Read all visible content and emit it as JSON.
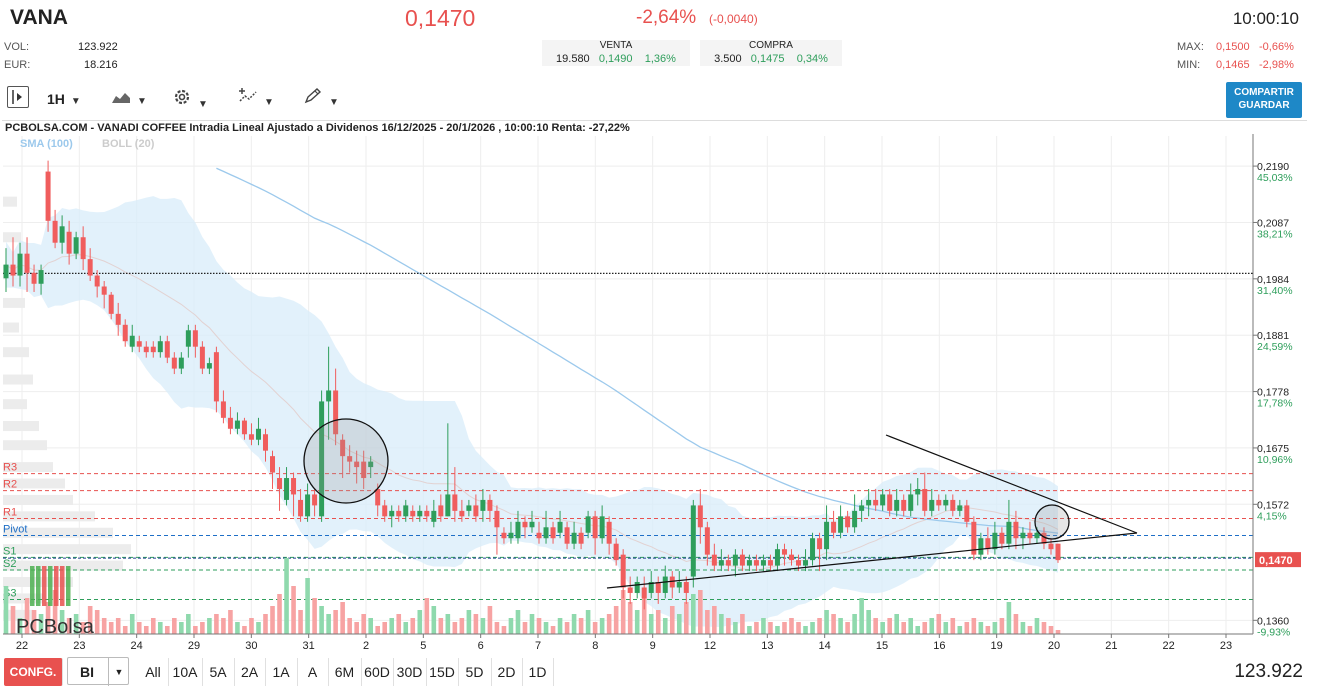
{
  "header": {
    "ticker": "VANA",
    "price": "0,1470",
    "change_pct": "-2,64%",
    "change_abs": "(-0,0040)",
    "time": "10:00:10",
    "vol_label": "VOL:",
    "vol_value": "123.922",
    "eur_label": "EUR:",
    "eur_value": "18.216",
    "max_label": "MAX:",
    "max_price": "0,1500",
    "max_pct": "-0,66%",
    "min_label": "MIN:",
    "min_price": "0,1465",
    "min_pct": "-2,98%"
  },
  "orderbook": {
    "sell_label": "VENTA",
    "sell_qty": "19.580",
    "sell_price": "0,1490",
    "sell_pct": "1,36%",
    "buy_label": "COMPRA",
    "buy_qty": "3.500",
    "buy_price": "0,1475",
    "buy_pct": "0,34%"
  },
  "toolbar": {
    "interval": "1H",
    "share_line1": "COMPARTIR",
    "share_line2": "GUARDAR"
  },
  "bottom": {
    "config": "CONFG.",
    "scale": "BI",
    "ranges": [
      "All",
      "10A",
      "5A",
      "2A",
      "1A",
      "A",
      "6M",
      "60D",
      "30D",
      "15D",
      "5D",
      "2D",
      "1D"
    ],
    "volume": "123.922"
  },
  "colors": {
    "up": "#2e9e5b",
    "down": "#f05d5d",
    "sma": "#9cc9ec",
    "band": "#d8ecfa",
    "accent": "#1e88c7"
  },
  "chart_data": {
    "type": "candlestick",
    "title": "PCBOLSA.COM - VANADI COFFEE Intradia Lineal Ajustado a Dividenos 16/12/2025 - 20/1/2026 , 10:00:10 Renta: -27,22%",
    "legend": [
      "SMA (100)",
      "BOLL (20)"
    ],
    "watermark": "PCBolsa",
    "x_ticks": [
      "22",
      "23",
      "24",
      "29",
      "30",
      "31",
      "2",
      "5",
      "6",
      "7",
      "8",
      "9",
      "12",
      "13",
      "14",
      "15",
      "16",
      "19",
      "20",
      "21",
      "22",
      "23"
    ],
    "y_ticks": [
      {
        "value": 0.219,
        "label": "0,2190",
        "pct": "45,03%"
      },
      {
        "value": 0.2087,
        "label": "0,2087",
        "pct": "38,21%"
      },
      {
        "value": 0.1984,
        "label": "0,1984",
        "pct": "31,40%"
      },
      {
        "value": 0.1881,
        "label": "0,1881",
        "pct": "24,59%"
      },
      {
        "value": 0.1778,
        "label": "0,1778",
        "pct": "17,78%"
      },
      {
        "value": 0.1675,
        "label": "0,1675",
        "pct": "10,96%"
      },
      {
        "value": 0.1572,
        "label": "0,1572",
        "pct": "4,15%"
      },
      {
        "value": 0.136,
        "label": "0,1360",
        "pct": "-9,93%"
      }
    ],
    "last_price": {
      "value": 0.147,
      "label": "0,1470"
    },
    "ylim": [
      0.1335,
      0.2245
    ],
    "levels": [
      {
        "name": "R3",
        "value": 0.1628,
        "color": "#e8514f"
      },
      {
        "name": "R2",
        "value": 0.1597,
        "color": "#e8514f"
      },
      {
        "name": "R1",
        "value": 0.1546,
        "color": "#e8514f"
      },
      {
        "name": "Pivot",
        "value": 0.1515,
        "color": "#1e6fc7"
      },
      {
        "name": "S1",
        "value": 0.1475,
        "color": "#2e9e5b"
      },
      {
        "name": "S2",
        "value": 0.1452,
        "color": "#2e9e5b"
      },
      {
        "name": "S3",
        "value": 0.1398,
        "color": "#2e9e5b"
      }
    ],
    "reference_line": 0.1994,
    "candles": [
      [
        0.1985,
        0.201,
        0.204,
        0.196
      ],
      [
        0.201,
        0.199,
        0.206,
        0.197
      ],
      [
        0.199,
        0.203,
        0.205,
        0.197
      ],
      [
        0.203,
        0.1995,
        0.206,
        0.196
      ],
      [
        0.1995,
        0.1975,
        0.201,
        0.196
      ],
      [
        0.1975,
        0.2,
        0.201,
        0.1955
      ],
      [
        0.218,
        0.209,
        0.22,
        0.207
      ],
      [
        0.209,
        0.205,
        0.211,
        0.204
      ],
      [
        0.205,
        0.208,
        0.21,
        0.203
      ],
      [
        0.207,
        0.203,
        0.209,
        0.201
      ],
      [
        0.203,
        0.206,
        0.207,
        0.202
      ],
      [
        0.206,
        0.202,
        0.208,
        0.2
      ],
      [
        0.202,
        0.199,
        0.204,
        0.198
      ],
      [
        0.199,
        0.197,
        0.2,
        0.195
      ],
      [
        0.197,
        0.1955,
        0.198,
        0.193
      ],
      [
        0.1955,
        0.192,
        0.196,
        0.191
      ],
      [
        0.192,
        0.19,
        0.194,
        0.188
      ],
      [
        0.19,
        0.187,
        0.191,
        0.186
      ],
      [
        0.186,
        0.188,
        0.19,
        0.185
      ],
      [
        0.187,
        0.186,
        0.188,
        0.185
      ],
      [
        0.186,
        0.185,
        0.187,
        0.184
      ],
      [
        0.186,
        0.185,
        0.187,
        0.184
      ],
      [
        0.185,
        0.187,
        0.188,
        0.184
      ],
      [
        0.187,
        0.184,
        0.188,
        0.183
      ],
      [
        0.184,
        0.182,
        0.185,
        0.181
      ],
      [
        0.182,
        0.184,
        0.185,
        0.181
      ],
      [
        0.186,
        0.189,
        0.19,
        0.184
      ],
      [
        0.189,
        0.186,
        0.19,
        0.184
      ],
      [
        0.186,
        0.182,
        0.187,
        0.181
      ],
      [
        0.182,
        0.183,
        0.184,
        0.181
      ],
      [
        0.185,
        0.176,
        0.186,
        0.174
      ],
      [
        0.176,
        0.173,
        0.178,
        0.172
      ],
      [
        0.173,
        0.171,
        0.175,
        0.17
      ],
      [
        0.171,
        0.1725,
        0.174,
        0.17
      ],
      [
        0.1725,
        0.17,
        0.173,
        0.169
      ],
      [
        0.17,
        0.169,
        0.172,
        0.168
      ],
      [
        0.169,
        0.171,
        0.173,
        0.168
      ],
      [
        0.17,
        0.167,
        0.171,
        0.165
      ],
      [
        0.166,
        0.163,
        0.167,
        0.16
      ],
      [
        0.162,
        0.16,
        0.164,
        0.156
      ],
      [
        0.158,
        0.162,
        0.164,
        0.157
      ],
      [
        0.162,
        0.159,
        0.163,
        0.155
      ],
      [
        0.158,
        0.155,
        0.16,
        0.154
      ],
      [
        0.155,
        0.159,
        0.161,
        0.154
      ],
      [
        0.159,
        0.157,
        0.16,
        0.155
      ],
      [
        0.155,
        0.176,
        0.178,
        0.154
      ],
      [
        0.176,
        0.178,
        0.186,
        0.169
      ],
      [
        0.178,
        0.17,
        0.182,
        0.168
      ],
      [
        0.169,
        0.166,
        0.17,
        0.162
      ],
      [
        0.166,
        0.165,
        0.168,
        0.163
      ],
      [
        0.165,
        0.164,
        0.167,
        0.161
      ],
      [
        0.165,
        0.162,
        0.167,
        0.16
      ],
      [
        0.164,
        0.165,
        0.166,
        0.162
      ],
      [
        0.16,
        0.157,
        0.161,
        0.155
      ],
      [
        0.157,
        0.155,
        0.158,
        0.154
      ],
      [
        0.155,
        0.156,
        0.157,
        0.153
      ],
      [
        0.156,
        0.155,
        0.157,
        0.154
      ],
      [
        0.155,
        0.157,
        0.158,
        0.154
      ],
      [
        0.156,
        0.155,
        0.157,
        0.154
      ],
      [
        0.155,
        0.156,
        0.157,
        0.154
      ],
      [
        0.156,
        0.155,
        0.157,
        0.154
      ],
      [
        0.154,
        0.156,
        0.158,
        0.153
      ],
      [
        0.157,
        0.155,
        0.159,
        0.154
      ],
      [
        0.155,
        0.159,
        0.172,
        0.155
      ],
      [
        0.159,
        0.156,
        0.164,
        0.154
      ],
      [
        0.156,
        0.155,
        0.158,
        0.154
      ],
      [
        0.156,
        0.157,
        0.158,
        0.155
      ],
      [
        0.157,
        0.155,
        0.159,
        0.154
      ],
      [
        0.156,
        0.158,
        0.16,
        0.154
      ],
      [
        0.158,
        0.156,
        0.159,
        0.154
      ],
      [
        0.156,
        0.153,
        0.157,
        0.148
      ],
      [
        0.152,
        0.151,
        0.153,
        0.15
      ],
      [
        0.151,
        0.152,
        0.154,
        0.15
      ],
      [
        0.151,
        0.154,
        0.156,
        0.15
      ],
      [
        0.154,
        0.153,
        0.155,
        0.151
      ],
      [
        0.153,
        0.154,
        0.156,
        0.152
      ],
      [
        0.152,
        0.151,
        0.154,
        0.15
      ],
      [
        0.151,
        0.153,
        0.156,
        0.15
      ],
      [
        0.153,
        0.151,
        0.154,
        0.15
      ],
      [
        0.152,
        0.154,
        0.156,
        0.151
      ],
      [
        0.153,
        0.15,
        0.154,
        0.149
      ],
      [
        0.15,
        0.152,
        0.154,
        0.149
      ],
      [
        0.152,
        0.15,
        0.153,
        0.149
      ],
      [
        0.152,
        0.155,
        0.156,
        0.151
      ],
      [
        0.155,
        0.151,
        0.156,
        0.148
      ],
      [
        0.151,
        0.155,
        0.157,
        0.15
      ],
      [
        0.154,
        0.15,
        0.155,
        0.148
      ],
      [
        0.15,
        0.147,
        0.151,
        0.146
      ],
      [
        0.148,
        0.142,
        0.149,
        0.14
      ],
      [
        0.142,
        0.141,
        0.144,
        0.139
      ],
      [
        0.141,
        0.143,
        0.144,
        0.14
      ],
      [
        0.142,
        0.14,
        0.144,
        0.138
      ],
      [
        0.141,
        0.143,
        0.145,
        0.14
      ],
      [
        0.143,
        0.141,
        0.144,
        0.139
      ],
      [
        0.141,
        0.144,
        0.146,
        0.14
      ],
      [
        0.144,
        0.142,
        0.145,
        0.14
      ],
      [
        0.142,
        0.143,
        0.145,
        0.141
      ],
      [
        0.143,
        0.141,
        0.144,
        0.139
      ],
      [
        0.144,
        0.157,
        0.158,
        0.142
      ],
      [
        0.157,
        0.153,
        0.16,
        0.15
      ],
      [
        0.153,
        0.148,
        0.154,
        0.146
      ],
      [
        0.148,
        0.146,
        0.15,
        0.145
      ],
      [
        0.146,
        0.147,
        0.149,
        0.145
      ],
      [
        0.147,
        0.146,
        0.148,
        0.145
      ],
      [
        0.146,
        0.148,
        0.149,
        0.144
      ],
      [
        0.148,
        0.146,
        0.149,
        0.145
      ],
      [
        0.146,
        0.147,
        0.148,
        0.145
      ],
      [
        0.147,
        0.146,
        0.148,
        0.145
      ],
      [
        0.146,
        0.147,
        0.148,
        0.145
      ],
      [
        0.147,
        0.146,
        0.148,
        0.145
      ],
      [
        0.146,
        0.149,
        0.15,
        0.145
      ],
      [
        0.149,
        0.148,
        0.15,
        0.146
      ],
      [
        0.148,
        0.147,
        0.149,
        0.146
      ],
      [
        0.147,
        0.146,
        0.148,
        0.145
      ],
      [
        0.146,
        0.147,
        0.149,
        0.145
      ],
      [
        0.147,
        0.151,
        0.152,
        0.146
      ],
      [
        0.151,
        0.149,
        0.152,
        0.145
      ],
      [
        0.149,
        0.154,
        0.157,
        0.147
      ],
      [
        0.154,
        0.152,
        0.156,
        0.151
      ],
      [
        0.152,
        0.155,
        0.157,
        0.151
      ],
      [
        0.155,
        0.153,
        0.156,
        0.152
      ],
      [
        0.153,
        0.156,
        0.159,
        0.152
      ],
      [
        0.156,
        0.157,
        0.158,
        0.154
      ],
      [
        0.157,
        0.158,
        0.16,
        0.155
      ],
      [
        0.158,
        0.157,
        0.16,
        0.156
      ],
      [
        0.157,
        0.159,
        0.16,
        0.156
      ],
      [
        0.159,
        0.156,
        0.16,
        0.155
      ],
      [
        0.156,
        0.158,
        0.16,
        0.155
      ],
      [
        0.158,
        0.156,
        0.159,
        0.155
      ],
      [
        0.156,
        0.159,
        0.161,
        0.155
      ],
      [
        0.159,
        0.16,
        0.162,
        0.157
      ],
      [
        0.16,
        0.156,
        0.163,
        0.155
      ],
      [
        0.156,
        0.158,
        0.16,
        0.155
      ],
      [
        0.158,
        0.157,
        0.159,
        0.156
      ],
      [
        0.157,
        0.158,
        0.159,
        0.156
      ],
      [
        0.158,
        0.156,
        0.159,
        0.155
      ],
      [
        0.156,
        0.157,
        0.158,
        0.155
      ],
      [
        0.157,
        0.154,
        0.158,
        0.153
      ],
      [
        0.154,
        0.148,
        0.155,
        0.147
      ],
      [
        0.148,
        0.151,
        0.152,
        0.147
      ],
      [
        0.151,
        0.149,
        0.153,
        0.148
      ],
      [
        0.149,
        0.152,
        0.154,
        0.148
      ],
      [
        0.152,
        0.15,
        0.153,
        0.149
      ],
      [
        0.15,
        0.154,
        0.158,
        0.149
      ],
      [
        0.154,
        0.151,
        0.156,
        0.149
      ],
      [
        0.151,
        0.152,
        0.153,
        0.149
      ],
      [
        0.152,
        0.151,
        0.154,
        0.15
      ],
      [
        0.151,
        0.152,
        0.153,
        0.15
      ],
      [
        0.152,
        0.15,
        0.153,
        0.149
      ],
      [
        0.15,
        0.149,
        0.151,
        0.148
      ],
      [
        0.15,
        0.147,
        0.15,
        0.1465
      ]
    ],
    "volumes": [
      0.6,
      0.35,
      0.2,
      0.45,
      0.3,
      0.25,
      0.4,
      0.55,
      0.3,
      0.2,
      0.25,
      0.15,
      0.35,
      0.3,
      0.2,
      0.15,
      0.2,
      0.1,
      0.25,
      0.15,
      0.1,
      0.2,
      0.15,
      0.1,
      0.2,
      0.15,
      0.25,
      0.1,
      0.15,
      0.2,
      0.25,
      0.2,
      0.3,
      0.15,
      0.1,
      0.2,
      0.15,
      0.25,
      0.35,
      0.5,
      0.95,
      0.6,
      0.3,
      0.7,
      0.45,
      0.35,
      0.25,
      0.3,
      0.4,
      0.2,
      0.15,
      0.25,
      0.2,
      0.1,
      0.15,
      0.2,
      0.25,
      0.15,
      0.2,
      0.3,
      0.45,
      0.35,
      0.2,
      0.25,
      0.15,
      0.2,
      0.3,
      0.25,
      0.2,
      0.35,
      0.15,
      0.1,
      0.2,
      0.3,
      0.15,
      0.25,
      0.2,
      0.15,
      0.1,
      0.2,
      0.15,
      0.25,
      0.2,
      0.3,
      0.15,
      0.2,
      0.25,
      0.35,
      0.55,
      0.4,
      0.3,
      0.45,
      0.25,
      0.3,
      0.2,
      0.35,
      0.25,
      0.4,
      0.5,
      0.55,
      0.3,
      0.35,
      0.25,
      0.2,
      0.15,
      0.25,
      0.1,
      0.15,
      0.2,
      0.15,
      0.1,
      0.15,
      0.2,
      0.15,
      0.1,
      0.15,
      0.2,
      0.3,
      0.25,
      0.2,
      0.15,
      0.25,
      0.45,
      0.3,
      0.2,
      0.15,
      0.2,
      0.25,
      0.15,
      0.2,
      0.1,
      0.15,
      0.2,
      0.25,
      0.15,
      0.2,
      0.1,
      0.15,
      0.2,
      0.15,
      0.1,
      0.15,
      0.2,
      0.4,
      0.25,
      0.15,
      0.1,
      0.2,
      0.15,
      0.1,
      0.05
    ]
  }
}
